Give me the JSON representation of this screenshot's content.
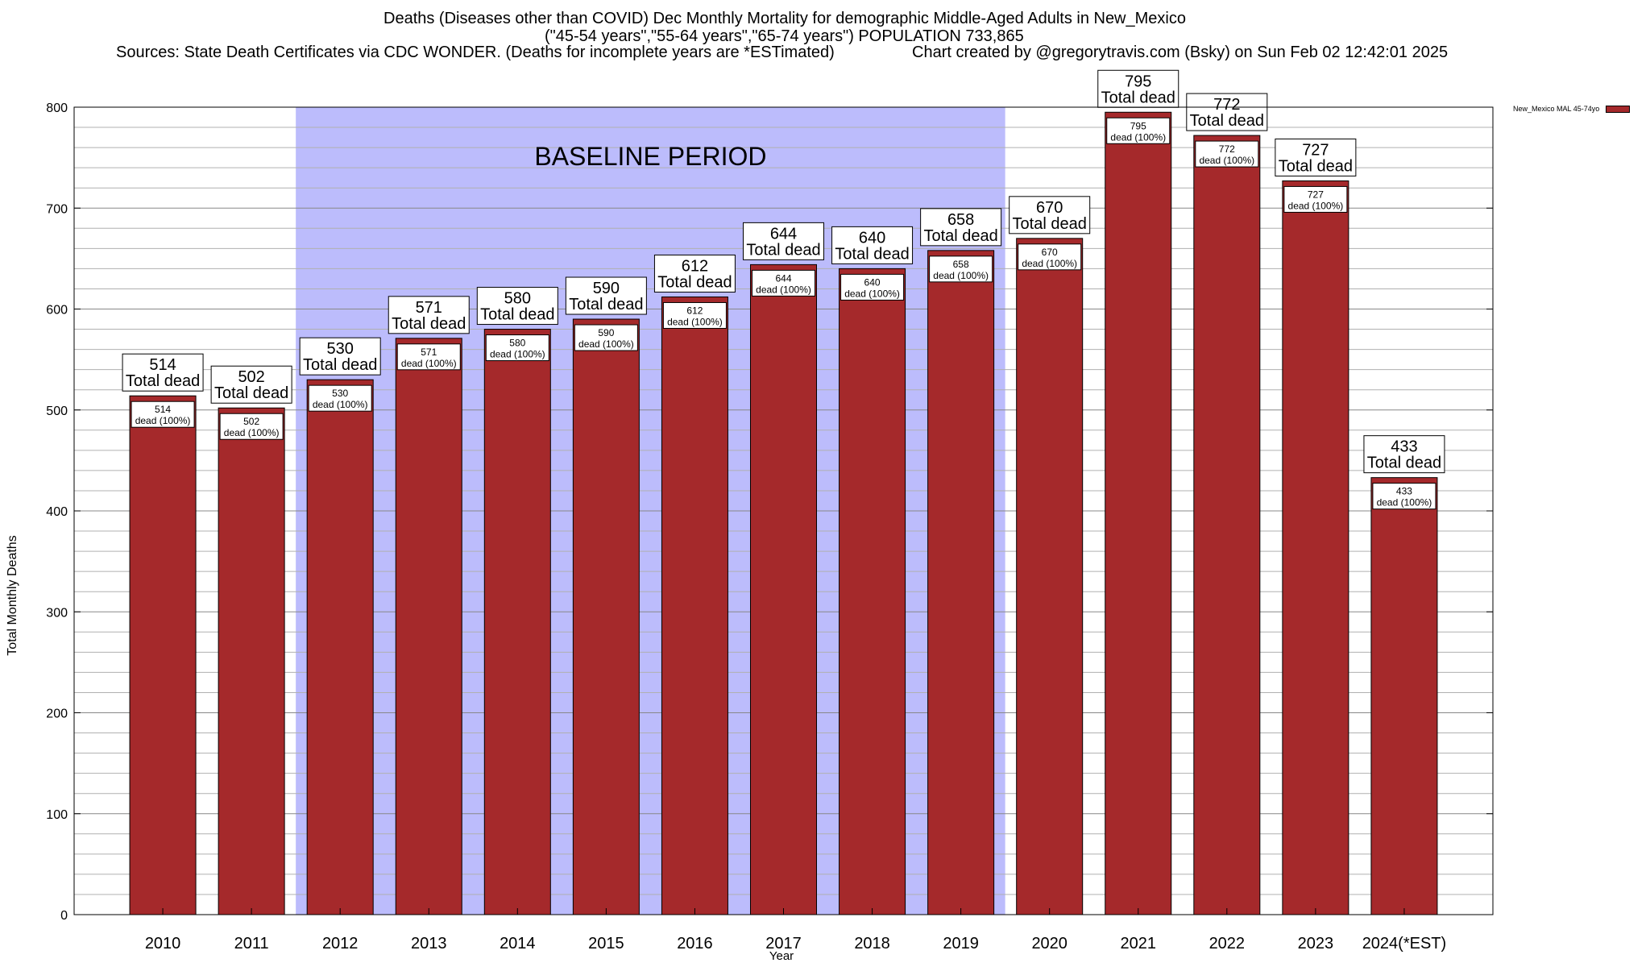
{
  "header": {
    "title_line1": "Deaths (Diseases other than COVID) Dec Monthly Mortality for demographic Middle-Aged Adults in New_Mexico",
    "title_line2": "(\"45-54 years\",\"55-64 years\",\"65-74 years\") POPULATION 733,865",
    "title_line3_left": "Sources: State Death Certificates via CDC WONDER. (Deaths for incomplete years are *ESTimated)",
    "title_line3_right": "Chart created by @gregorytravis.com (Bsky) on Sun Feb 02 12:42:01 2025"
  },
  "legend": {
    "label": "New_Mexico MAL 45-74yo"
  },
  "colors": {
    "bar": "#a5292b",
    "baseline_band": "#bcbcfc",
    "grid": "#b0b0b0"
  },
  "chart_data": {
    "type": "bar",
    "title": "Deaths (Diseases other than COVID) Dec Monthly Mortality for demographic Middle-Aged Adults in New_Mexico",
    "xlabel": "Year",
    "ylabel": "Total Monthly Deaths",
    "ylim": [
      0,
      800
    ],
    "yticks": [
      0,
      100,
      200,
      300,
      400,
      500,
      600,
      700,
      800
    ],
    "categories": [
      "2010",
      "2011",
      "2012",
      "2013",
      "2014",
      "2015",
      "2016",
      "2017",
      "2018",
      "2019",
      "2020",
      "2021",
      "2022",
      "2023",
      "2024(*EST)"
    ],
    "series": [
      {
        "name": "New_Mexico MAL 45-74yo",
        "values": [
          514,
          502,
          530,
          571,
          580,
          590,
          612,
          644,
          640,
          658,
          670,
          795,
          772,
          727,
          433
        ]
      }
    ],
    "total_label": "Total dead",
    "inner_label_suffix": "dead (100%)",
    "baseline_band": {
      "label": "BASELINE PERIOD",
      "from": "2012",
      "to": "2019"
    },
    "grid": true,
    "legend_position": "top-right"
  }
}
